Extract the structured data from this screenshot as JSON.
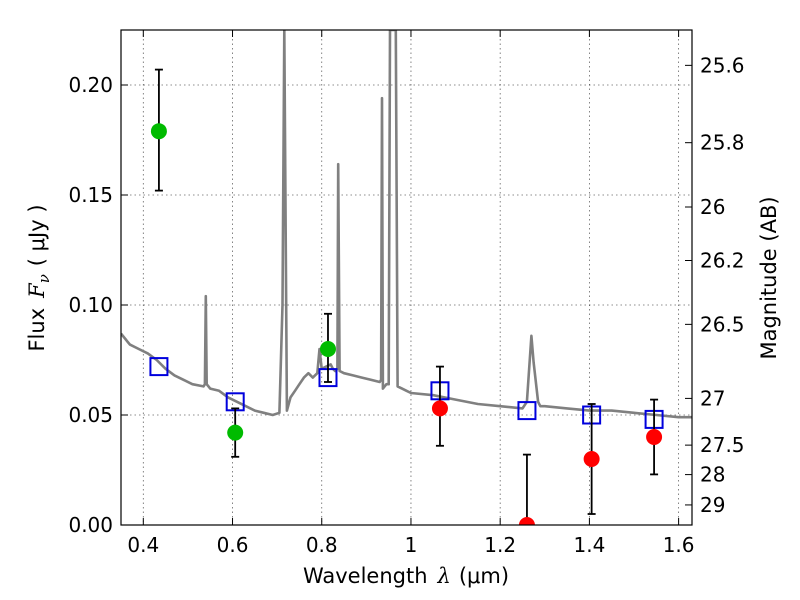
{
  "chart_data": {
    "type": "scatter",
    "xlabel": "Wavelength",
    "xlabel_symbol": "λ",
    "xlabel_unit": "(μm)",
    "ylabel": "Flux",
    "ylabel_symbol": "F",
    "ylabel_symbol_sub": "ν",
    "ylabel_unit": "( μJy )",
    "y2label": "Magnitude (AB)",
    "xlim": [
      0.35,
      1.63
    ],
    "ylim": [
      0.0,
      0.225
    ],
    "grid": true,
    "xticks": [
      {
        "v": 0.4,
        "label": "0.4"
      },
      {
        "v": 0.6,
        "label": "0.6"
      },
      {
        "v": 0.8,
        "label": "0.8"
      },
      {
        "v": 1.0,
        "label": "1"
      },
      {
        "v": 1.2,
        "label": "1.2"
      },
      {
        "v": 1.4,
        "label": "1.4"
      },
      {
        "v": 1.6,
        "label": "1.6"
      }
    ],
    "yticks": [
      {
        "v": 0.0,
        "label": "0.00"
      },
      {
        "v": 0.05,
        "label": "0.05"
      },
      {
        "v": 0.1,
        "label": "0.10"
      },
      {
        "v": 0.15,
        "label": "0.15"
      },
      {
        "v": 0.2,
        "label": "0.20"
      }
    ],
    "magnitude_ticks": [
      {
        "mag": 25.6,
        "label": "25.6"
      },
      {
        "mag": 25.8,
        "label": "25.8"
      },
      {
        "mag": 26.0,
        "label": "26"
      },
      {
        "mag": 26.2,
        "label": "26.2"
      },
      {
        "mag": 26.5,
        "label": "26.5"
      },
      {
        "mag": 27.0,
        "label": "27"
      },
      {
        "mag": 27.5,
        "label": "27.5"
      },
      {
        "mag": 28.0,
        "label": "28"
      },
      {
        "mag": 29.0,
        "label": "29"
      }
    ],
    "series": [
      {
        "kind": "observed-optical",
        "color": "#00bb00",
        "marker": "circle",
        "points": [
          {
            "x": 0.435,
            "y": 0.179,
            "lo": 0.152,
            "hi": 0.207
          },
          {
            "x": 0.606,
            "y": 0.042,
            "lo": 0.031,
            "hi": 0.053
          },
          {
            "x": 0.814,
            "y": 0.08,
            "lo": 0.065,
            "hi": 0.096
          }
        ]
      },
      {
        "kind": "observed-nir",
        "color": "#ff0000",
        "marker": "circle",
        "points": [
          {
            "x": 1.065,
            "y": 0.053,
            "lo": 0.036,
            "hi": 0.072
          },
          {
            "x": 1.26,
            "y": 0.0,
            "lo": 0.0,
            "hi": 0.032
          },
          {
            "x": 1.405,
            "y": 0.03,
            "lo": 0.005,
            "hi": 0.055
          },
          {
            "x": 1.545,
            "y": 0.04,
            "lo": 0.023,
            "hi": 0.057
          }
        ]
      },
      {
        "kind": "model-photometry",
        "color": "#0000dd",
        "marker": "open-square",
        "points": [
          {
            "x": 0.435,
            "y": 0.072
          },
          {
            "x": 0.606,
            "y": 0.056
          },
          {
            "x": 0.814,
            "y": 0.067
          },
          {
            "x": 1.065,
            "y": 0.061
          },
          {
            "x": 1.26,
            "y": 0.052
          },
          {
            "x": 1.405,
            "y": 0.05
          },
          {
            "x": 1.545,
            "y": 0.048
          }
        ]
      },
      {
        "kind": "model-spectrum",
        "color": "#808080",
        "marker": "line",
        "points": [
          [
            0.35,
            0.087
          ],
          [
            0.37,
            0.082
          ],
          [
            0.39,
            0.08
          ],
          [
            0.41,
            0.078
          ],
          [
            0.43,
            0.075
          ],
          [
            0.45,
            0.071
          ],
          [
            0.47,
            0.068
          ],
          [
            0.49,
            0.066
          ],
          [
            0.51,
            0.064
          ],
          [
            0.535,
            0.063
          ],
          [
            0.538,
            0.064
          ],
          [
            0.54,
            0.104
          ],
          [
            0.542,
            0.064
          ],
          [
            0.55,
            0.062
          ],
          [
            0.57,
            0.061
          ],
          [
            0.59,
            0.058
          ],
          [
            0.61,
            0.056
          ],
          [
            0.63,
            0.054
          ],
          [
            0.65,
            0.052
          ],
          [
            0.67,
            0.051
          ],
          [
            0.69,
            0.05
          ],
          [
            0.705,
            0.051
          ],
          [
            0.712,
            0.1
          ],
          [
            0.716,
            0.225
          ],
          [
            0.722,
            0.052
          ],
          [
            0.73,
            0.058
          ],
          [
            0.74,
            0.061
          ],
          [
            0.75,
            0.064
          ],
          [
            0.76,
            0.067
          ],
          [
            0.77,
            0.069
          ],
          [
            0.78,
            0.067
          ],
          [
            0.79,
            0.069
          ],
          [
            0.795,
            0.08
          ],
          [
            0.8,
            0.071
          ],
          [
            0.81,
            0.072
          ],
          [
            0.82,
            0.073
          ],
          [
            0.825,
            0.071
          ],
          [
            0.83,
            0.07
          ],
          [
            0.835,
            0.071
          ],
          [
            0.837,
            0.164
          ],
          [
            0.84,
            0.07
          ],
          [
            0.85,
            0.069
          ],
          [
            0.87,
            0.068
          ],
          [
            0.89,
            0.067
          ],
          [
            0.91,
            0.066
          ],
          [
            0.93,
            0.065
          ],
          [
            0.933,
            0.066
          ],
          [
            0.935,
            0.194
          ],
          [
            0.937,
            0.062
          ],
          [
            0.945,
            0.064
          ],
          [
            0.95,
            0.064
          ],
          [
            0.953,
            0.225
          ],
          [
            0.957,
            0.225
          ],
          [
            0.96,
            0.225
          ],
          [
            0.964,
            0.225
          ],
          [
            0.966,
            0.225
          ],
          [
            0.97,
            0.063
          ],
          [
            0.98,
            0.062
          ],
          [
            0.99,
            0.061
          ],
          [
            1.0,
            0.06
          ],
          [
            1.05,
            0.059
          ],
          [
            1.1,
            0.057
          ],
          [
            1.15,
            0.055
          ],
          [
            1.2,
            0.054
          ],
          [
            1.25,
            0.053
          ],
          [
            1.26,
            0.056
          ],
          [
            1.27,
            0.086
          ],
          [
            1.275,
            0.074
          ],
          [
            1.285,
            0.056
          ],
          [
            1.29,
            0.054
          ],
          [
            1.3,
            0.054
          ],
          [
            1.35,
            0.053
          ],
          [
            1.4,
            0.052
          ],
          [
            1.45,
            0.052
          ],
          [
            1.5,
            0.051
          ],
          [
            1.55,
            0.05
          ],
          [
            1.6,
            0.049
          ],
          [
            1.63,
            0.049
          ]
        ]
      }
    ]
  }
}
